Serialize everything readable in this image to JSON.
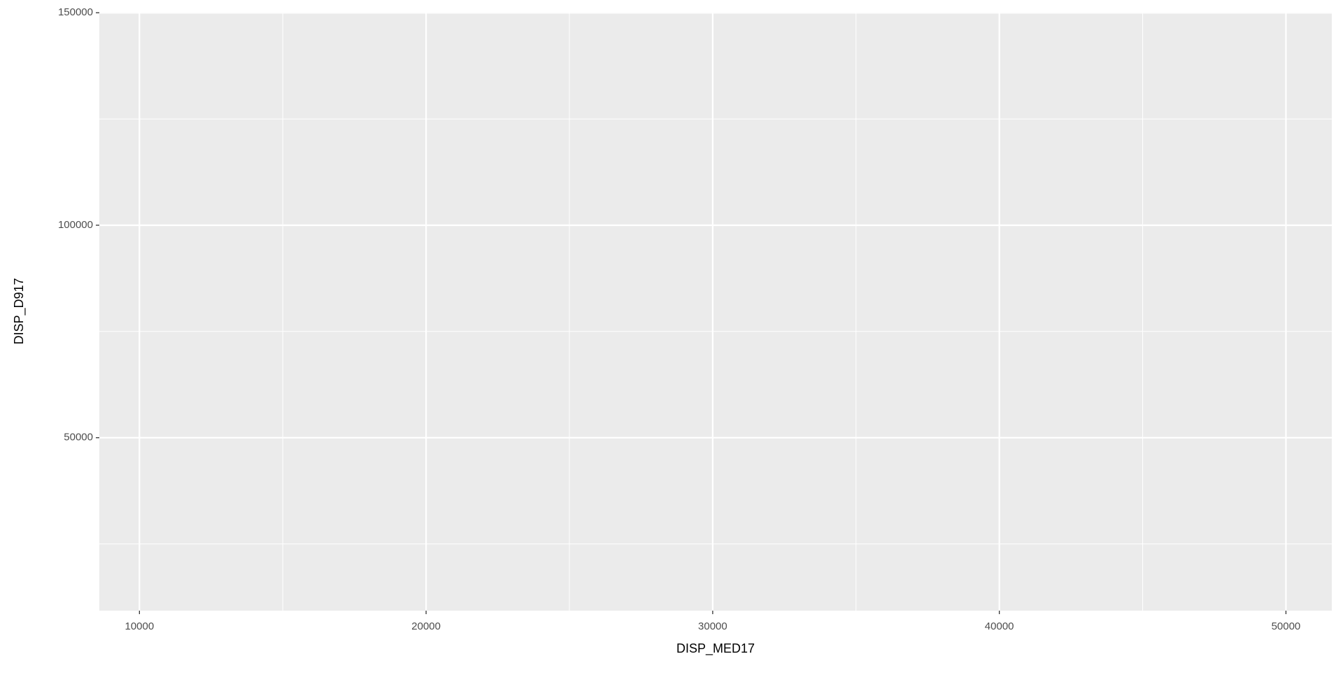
{
  "chart_data": {
    "type": "scatter",
    "x_label": "DISP_MED17",
    "y_label": "DISP_D917",
    "xlim": [
      8600,
      51600
    ],
    "xticks": [
      10000,
      20000,
      30000,
      40000,
      50000
    ],
    "x_minor_ticks": [
      15000,
      25000,
      35000,
      45000
    ],
    "ylim": [
      9300,
      150200
    ],
    "yticks": [
      50000,
      100000,
      150000
    ],
    "y_minor_ticks": [
      25000,
      75000,
      125000
    ],
    "grid": true,
    "panel_color": "#ebebeb",
    "grid_color": "#ffffff"
  }
}
